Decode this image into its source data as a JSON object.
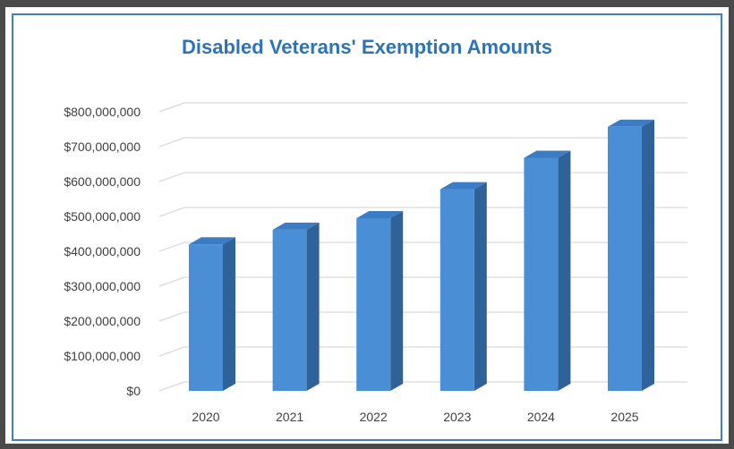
{
  "chart_data": {
    "type": "bar",
    "title": "Disabled Veterans' Exemption Amounts",
    "categories": [
      "2020",
      "2021",
      "2022",
      "2023",
      "2024",
      "2025"
    ],
    "values": [
      420000000,
      462000000,
      495000000,
      578000000,
      668000000,
      757000000
    ],
    "y_ticks": [
      "$0",
      "$100,000,000",
      "$200,000,000",
      "$300,000,000",
      "$400,000,000",
      "$500,000,000",
      "$600,000,000",
      "$700,000,000",
      "$800,000,000"
    ],
    "ylim": [
      0,
      800000000
    ],
    "xlabel": "",
    "ylabel": "",
    "grid": true,
    "three_d": true,
    "colors": {
      "bar_front": "#4a8fd6",
      "bar_side": "#2f6299",
      "bar_top": "#3b7cc4",
      "title": "#2e74b5",
      "grid": "#d9d9d9",
      "border": "#3f7fbf"
    }
  }
}
